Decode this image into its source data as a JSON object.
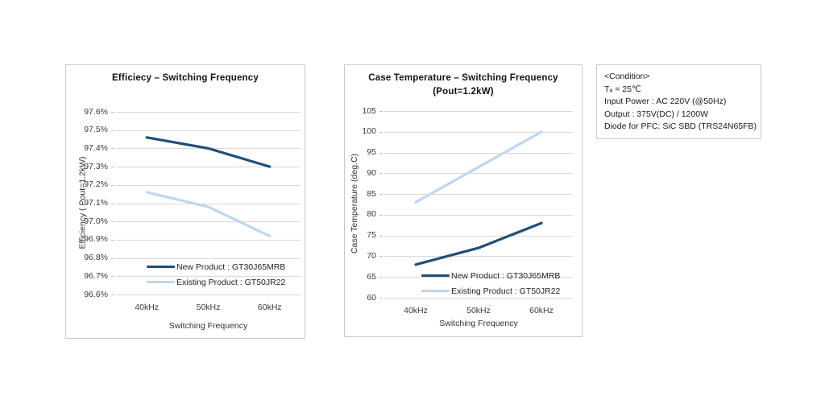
{
  "colors": {
    "new_product": "#1f4e79",
    "existing_product": "#bdd7ee",
    "gridline": "#d9d9d9",
    "chart_border": "#c9c9c9"
  },
  "chart_data": [
    {
      "type": "line",
      "title": "Efficiecy – Switching Frequency",
      "xlabel": "Switching Frequency",
      "ylabel": "Efficiency ( Pout=1.2kW)",
      "categories": [
        "40kHz",
        "50kHz",
        "60kHz"
      ],
      "ylim": [
        96.6,
        97.6
      ],
      "ytick_step": 0.1,
      "ytick_labels": [
        "97.6%",
        "97.5%",
        "97.4%",
        "97.3%",
        "97.2%",
        "97.1%",
        "97.0%",
        "96.9%",
        "96.8%",
        "96.7%",
        "96.6%"
      ],
      "grid": "horizontal",
      "legend_position": "inside-bottom",
      "series": [
        {
          "name": "New Product : GT30J65MRB",
          "color": "#1f4e79",
          "values": [
            97.46,
            97.4,
            97.3
          ]
        },
        {
          "name": "Existing Product : GT50JR22",
          "color": "#bdd7ee",
          "values": [
            97.16,
            97.08,
            96.92
          ]
        }
      ]
    },
    {
      "type": "line",
      "title": "Case Temperature – Switching Frequency",
      "subtitle": "(Pout=1.2kW)",
      "xlabel": "Switching Frequency",
      "ylabel": "Case Temperature (deg.C)",
      "categories": [
        "40kHz",
        "50kHz",
        "60kHz"
      ],
      "ylim": [
        60,
        105
      ],
      "ytick_step": 5,
      "ytick_labels": [
        "105",
        "100",
        "95",
        "90",
        "85",
        "80",
        "75",
        "70",
        "65",
        "60"
      ],
      "grid": "horizontal",
      "legend_position": "inside-bottom",
      "series": [
        {
          "name": "New Product : GT30J65MRB",
          "color": "#1f4e79",
          "values": [
            68,
            72,
            78
          ]
        },
        {
          "name": "Existing Product : GT50JR22",
          "color": "#bdd7ee",
          "values": [
            83,
            91.5,
            100
          ]
        }
      ]
    }
  ],
  "condition_box": {
    "lines": [
      "<Condition>",
      "Tₐ = 25℃",
      "Input Power : AC 220V (@50Hz)",
      "Output :  375V(DC) / 1200W",
      "Diode for PFC: SiC SBD (TRS24N65FB)"
    ]
  }
}
